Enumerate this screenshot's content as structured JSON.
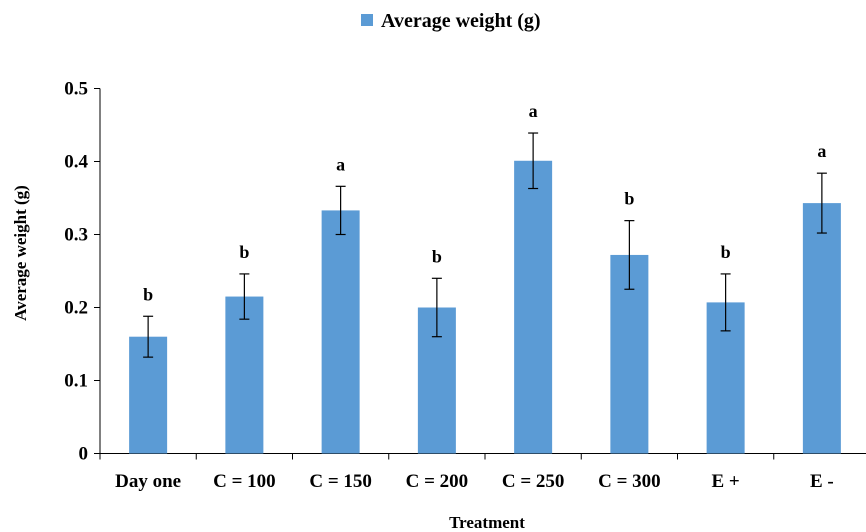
{
  "chart_data": {
    "type": "bar",
    "legend": {
      "label": "Average weight (g)",
      "placement": "top-center"
    },
    "xlabel": "Treatment",
    "ylabel": "Average weight (g)",
    "ylim": [
      0,
      0.5
    ],
    "yticks": [
      "0",
      "0.1",
      "0.2",
      "0.3",
      "0.4",
      "0.5"
    ],
    "grid": false,
    "categories": [
      "Day one",
      "C = 100",
      "C = 150",
      "C = 200",
      "C = 250",
      "C = 300",
      "E +",
      "E -"
    ],
    "series": [
      {
        "name": "Average weight (g)",
        "values": [
          0.16,
          0.215,
          0.333,
          0.2,
          0.401,
          0.272,
          0.207,
          0.343
        ],
        "errors": [
          0.028,
          0.031,
          0.033,
          0.04,
          0.038,
          0.047,
          0.039,
          0.041
        ],
        "letters": [
          "b",
          "b",
          "a",
          "b",
          "a",
          "b",
          "b",
          "a"
        ]
      }
    ],
    "colors": {
      "bar": "#5B9BD5",
      "axis": "#000000"
    }
  }
}
